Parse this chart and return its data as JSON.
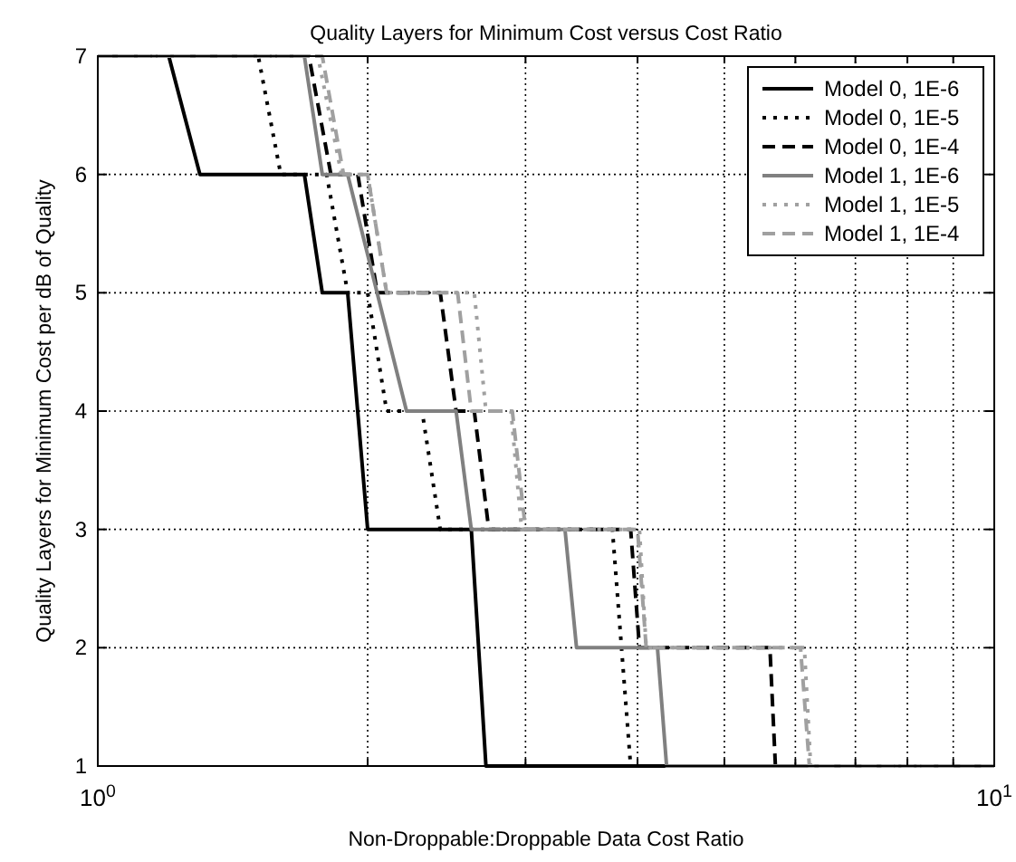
{
  "chart_data": {
    "type": "line",
    "title": "Quality Layers for Minimum Cost versus Cost Ratio",
    "xlabel": "Non-Droppable:Droppable Data Cost Ratio",
    "ylabel": "Quality Layers for Minimum Cost per dB of Quality",
    "log": "x",
    "grid": true,
    "legend": "top right",
    "marker": "none",
    "xlim": [
      1,
      10
    ],
    "ylim": [
      1,
      7
    ],
    "xticks": [
      {
        "value": 1,
        "label": "10$^{0}$"
      },
      {
        "value": 10,
        "label": "10$^{1}$"
      }
    ],
    "yticks": [
      1,
      2,
      3,
      4,
      5,
      6,
      7
    ],
    "series": [
      {
        "name": "Model 0, 1E-6",
        "color": "#000000",
        "line_style": "solid",
        "x": [
          1,
          1.2,
          1.3,
          1.7,
          1.78,
          1.9,
          2.0,
          2.61,
          2.71,
          10
        ],
        "values": [
          7,
          7,
          6,
          6,
          5,
          5,
          3,
          3,
          1,
          1
        ]
      },
      {
        "name": "Model 0, 1E-5",
        "color": "#000000",
        "line_style": "dotted",
        "x": [
          1,
          1.51,
          1.6,
          1.8,
          1.9,
          2.0,
          2.1,
          2.3,
          2.41,
          3.75,
          3.93,
          10
        ],
        "values": [
          7,
          7,
          6,
          6,
          5,
          5,
          4,
          4,
          3,
          3,
          1,
          1
        ]
      },
      {
        "name": "Model 0, 1E-4",
        "color": "#000000",
        "line_style": "dashed",
        "x": [
          1,
          1.72,
          1.82,
          1.95,
          2.05,
          2.41,
          2.51,
          2.63,
          2.73,
          3.93,
          4.02,
          5.62,
          5.7,
          10
        ],
        "values": [
          7,
          7,
          6,
          6,
          5,
          5,
          4,
          4,
          3,
          3,
          2,
          2,
          1,
          1
        ]
      },
      {
        "name": "Model 1, 1E-6",
        "color": "#808080",
        "line_style": "solid",
        "x": [
          1,
          1.7,
          1.78,
          1.9,
          2.21,
          2.51,
          2.61,
          3.32,
          3.42,
          4.21,
          4.31,
          10
        ],
        "values": [
          7,
          7,
          6,
          6,
          4,
          4,
          3,
          3,
          2,
          2,
          1,
          1
        ]
      },
      {
        "name": "Model 1, 1E-5",
        "color": "#a0a0a0",
        "line_style": "dotted",
        "x": [
          1,
          1.76,
          1.87,
          2.0,
          2.1,
          2.63,
          2.71,
          2.89,
          2.97,
          4.02,
          4.09,
          6.14,
          6.24,
          10
        ],
        "values": [
          7,
          7,
          6,
          6,
          5,
          5,
          4,
          4,
          3,
          3,
          2,
          2,
          1,
          1
        ]
      },
      {
        "name": "Model 1, 1E-4",
        "color": "#a0a0a0",
        "line_style": "dashed",
        "x": [
          1,
          1.78,
          1.88,
          2.0,
          2.1,
          2.52,
          2.61,
          2.9,
          3.0,
          4.0,
          4.09,
          6.08,
          6.22,
          10
        ],
        "values": [
          7,
          7,
          6,
          6,
          5,
          5,
          4,
          4,
          3,
          3,
          2,
          2,
          1,
          1
        ]
      }
    ]
  }
}
